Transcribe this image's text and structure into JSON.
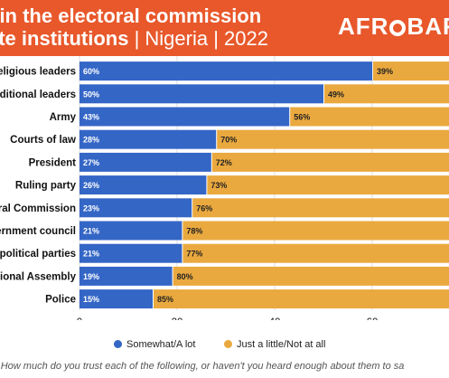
{
  "header": {
    "title_line1": "t in the electoral commission",
    "title_line2_bold": "ate institutions",
    "title_line2_rest": " | Nigeria | 2022",
    "brand_left": "AFR",
    "brand_right": "BAR"
  },
  "legend": [
    {
      "label": "Somewhat/A lot",
      "color": "#3466c6"
    },
    {
      "label": "Just a little/Not at all",
      "color": "#eaa93f"
    }
  ],
  "note": {
    "prefix": ":",
    "text": " How much do you trust each of the following, or haven't you heard enough about them to sa"
  },
  "chart_data": {
    "type": "bar",
    "orientation": "horizontal",
    "stacked": true,
    "categories": [
      "Religious leaders",
      "aditional leaders",
      "Army",
      "Courts of law",
      "President",
      "Ruling party",
      "oral Commission",
      "vernment council",
      "n political parties",
      "ational Assembly",
      "Police"
    ],
    "series": [
      {
        "name": "Somewhat/A lot",
        "color": "#3466c6",
        "values": [
          60,
          50,
          43,
          28,
          27,
          26,
          23,
          21,
          21,
          19,
          15
        ]
      },
      {
        "name": "Just a little/Not at all",
        "color": "#eaa93f",
        "values": [
          39,
          49,
          56,
          70,
          72,
          73,
          76,
          78,
          77,
          80,
          85
        ]
      }
    ],
    "value_suffix": "%",
    "xticks": [
      0,
      20,
      40,
      60
    ],
    "xlim": [
      0,
      100
    ],
    "grid": true,
    "legend_position": "bottom"
  }
}
